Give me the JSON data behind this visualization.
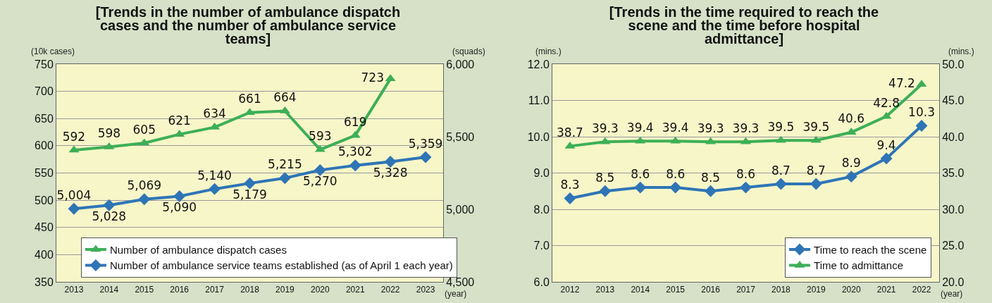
{
  "chart_data": [
    {
      "type": "line",
      "title": "[Trends in the number of ambulance dispatch cases and the number of ambulance service teams]",
      "ylabel": "(10k cases)",
      "y2label": "(squads)",
      "xlabel": "(year)",
      "categories": [
        "2013",
        "2014",
        "2015",
        "2016",
        "2017",
        "2018",
        "2019",
        "2020",
        "2021",
        "2022",
        "2023"
      ],
      "series": [
        {
          "name": "Number of ambulance dispatch cases",
          "color": "#3daf57",
          "marker": "triangle",
          "values": [
            592,
            598,
            605,
            621,
            634,
            661,
            664,
            593,
            619,
            723,
            null
          ],
          "value_labels": [
            "592",
            "598",
            "605",
            "621",
            "634",
            "661",
            "664",
            "593",
            "619",
            "723",
            null
          ]
        },
        {
          "name": "Number of ambulance service teams established (as of April 1 each year)",
          "color": "#2e75b6",
          "marker": "diamond",
          "axis": "y2",
          "values": [
            5004,
            5028,
            5069,
            5090,
            5140,
            5179,
            5215,
            5270,
            5302,
            5328,
            5359
          ],
          "value_labels": [
            "5,004",
            "5,028",
            "5,069",
            "5,090",
            "5,140",
            "5,179",
            "5,215",
            "5,270",
            "5,302",
            "5,328",
            "5,359"
          ]
        }
      ],
      "ylim": [
        350,
        750
      ],
      "yticks": [
        350,
        400,
        450,
        500,
        550,
        600,
        650,
        700,
        750
      ],
      "y2lim": [
        4500,
        6000
      ],
      "y2ticks": [
        {
          "value": 4500,
          "label": "4,500"
        },
        {
          "value": 5000,
          "label": "5,000"
        },
        {
          "value": 5500,
          "label": "5,500"
        },
        {
          "value": 6000,
          "label": "6,000"
        }
      ],
      "grid": "y",
      "legend": "bottom",
      "line_style": "solid"
    },
    {
      "type": "line",
      "title": "[Trends in the time required to reach the scene and the time before hospital admittance]",
      "ylabel": "(mins.)",
      "y2label": "(mins.)",
      "xlabel": "(year)",
      "categories": [
        "2012",
        "2013",
        "2014",
        "2015",
        "2016",
        "2017",
        "2018",
        "2019",
        "2020",
        "2021",
        "2022"
      ],
      "series": [
        {
          "name": "Time to reach the scene",
          "color": "#2e75b6",
          "marker": "diamond",
          "values": [
            8.3,
            8.5,
            8.6,
            8.6,
            8.5,
            8.6,
            8.7,
            8.7,
            8.9,
            9.4,
            10.3
          ]
        },
        {
          "name": "Time to admittance",
          "color": "#3daf57",
          "marker": "triangle",
          "axis": "y2",
          "values": [
            38.7,
            39.3,
            39.4,
            39.4,
            39.3,
            39.3,
            39.5,
            39.5,
            40.6,
            42.8,
            47.2
          ]
        }
      ],
      "ylim": [
        6,
        12
      ],
      "yticks": [
        {
          "value": 6,
          "label": "6.0"
        },
        {
          "value": 7,
          "label": "7.0"
        },
        {
          "value": 8,
          "label": "8.0"
        },
        {
          "value": 9,
          "label": "9.0"
        },
        {
          "value": 10,
          "label": "10.0"
        },
        {
          "value": 11,
          "label": "11.0"
        },
        {
          "value": 12,
          "label": "12.0"
        }
      ],
      "y2lim": [
        20,
        50
      ],
      "y2ticks": [
        {
          "value": 20,
          "label": "20.0"
        },
        {
          "value": 25,
          "label": "25.0"
        },
        {
          "value": 30,
          "label": "30.0"
        },
        {
          "value": 35,
          "label": "35.0"
        },
        {
          "value": 40,
          "label": "40.0"
        },
        {
          "value": 45,
          "label": "45.0"
        },
        {
          "value": 50,
          "label": "50.0"
        }
      ],
      "grid": "y",
      "legend": "bottom right",
      "line_style": "solid",
      "data_labels": true
    }
  ]
}
